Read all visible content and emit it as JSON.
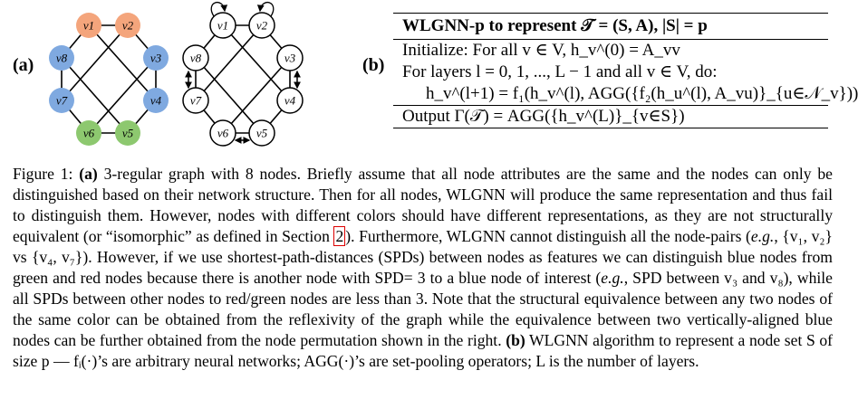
{
  "panel_a_label": "(a)",
  "panel_b_label": "(b)",
  "graph_a": {
    "nodes": [
      {
        "label": "v1",
        "color": "#f4a57c"
      },
      {
        "label": "v2",
        "color": "#f4a57c"
      },
      {
        "label": "v3",
        "color": "#7fa9e0"
      },
      {
        "label": "v4",
        "color": "#7fa9e0"
      },
      {
        "label": "v5",
        "color": "#8dc86f"
      },
      {
        "label": "v6",
        "color": "#8dc86f"
      },
      {
        "label": "v7",
        "color": "#7fa9e0"
      },
      {
        "label": "v8",
        "color": "#7fa9e0"
      }
    ]
  },
  "graph_b": {
    "nodes": [
      "v1",
      "v2",
      "v3",
      "v4",
      "v5",
      "v6",
      "v7",
      "v8"
    ]
  },
  "algorithm": {
    "title": "WLGNN-p to represent 𝒯 = (S, A), |S| = p",
    "lines": [
      "Initialize: For all v ∈ V, h_v^(0) = A_vv",
      "For layers l = 0, 1, ..., L − 1 and all v ∈ V, do:",
      "h_v^(l+1) = f₁(h_v^(l), AGG({f₂(h_u^(l), A_vu)}_{u∈𝒩_v}))",
      "Output Γ(𝒯) = AGG({h_v^(L)}_{v∈S})"
    ]
  },
  "caption": {
    "prefix": "Figure 1: ",
    "part_a_tag": "(a)",
    "text_a1": " 3-regular graph with 8 nodes. Briefly assume that all node attributes are the same and the nodes can only be distinguished based on their network structure. Then for all nodes, WLGNN will produce the same representation and thus fail to distinguish them. However, nodes with different colors should have different representations, as they are not structurally equivalent (or “isomorphic” as defined in Section ",
    "section_ref": "2",
    "text_a2": "). Furthermore, WLGNN cannot distinguish all the node-pairs (",
    "eg1": "e.g.",
    "text_a3": ", {v₁, v₂} vs {v₄, v₇}). However, if we use shortest-path-distances (SPDs) between nodes as features we can distinguish blue nodes from green and red nodes because there is another node with SPD= 3 to a blue node of interest (",
    "eg2": "e.g.",
    "text_a4": ", SPD between v₃ and v₈), while all SPDs between other nodes to red/green nodes are less than 3. Note that the structural equivalence between any two nodes of the same color can be obtained from the reflexivity of the graph while the equivalence between two vertically-aligned blue nodes can be further obtained from the node permutation shown in the right. ",
    "part_b_tag": "(b)",
    "text_b": " WLGNN algorithm to represent a node set S of size p — fᵢ(·)’s are arbitrary neural networks; AGG(·)’s are set-pooling operators; L is the number of layers."
  }
}
